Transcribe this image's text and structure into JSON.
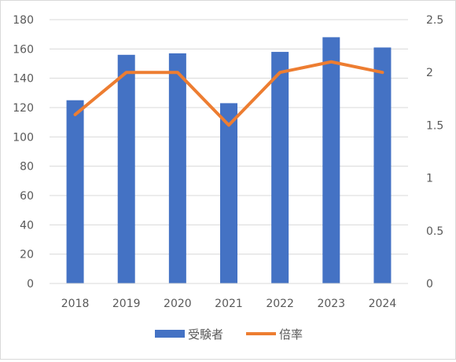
{
  "chart_data": {
    "type": "bar",
    "categories": [
      "2018",
      "2019",
      "2020",
      "2021",
      "2022",
      "2023",
      "2024"
    ],
    "series": [
      {
        "name": "受験者",
        "type": "bar",
        "axis": "left",
        "color": "#4472C4",
        "values": [
          125,
          156,
          157,
          123,
          158,
          168,
          161
        ]
      },
      {
        "name": "倍率",
        "type": "line",
        "axis": "right",
        "color": "#ED7D31",
        "values": [
          1.6,
          2.0,
          2.0,
          1.5,
          2.0,
          2.1,
          2.0
        ]
      }
    ],
    "y_left": {
      "min": 0,
      "max": 180,
      "ticks": [
        0,
        20,
        40,
        60,
        80,
        100,
        120,
        140,
        160,
        180
      ]
    },
    "y_right": {
      "min": 0,
      "max": 2.5,
      "ticks": [
        "0",
        "0.5",
        "1",
        "1.5",
        "2",
        "2.5"
      ]
    },
    "grid": true,
    "legend_position": "bottom"
  }
}
